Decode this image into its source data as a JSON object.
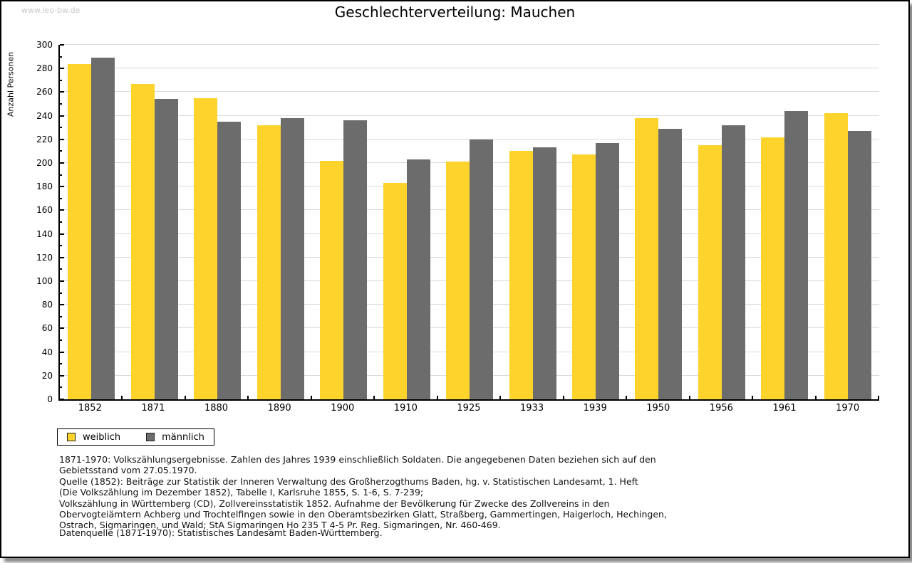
{
  "watermark": "www.leo-bw.de",
  "title": "Geschlechterverteilung: Mauchen",
  "y_axis_label": "Anzahl Personen",
  "footnote_lines": [
    "1871-1970: Volkszählungsergebnisse. Zahlen des Jahres 1939 einschließlich Soldaten. Die angegebenen Daten beziehen sich auf den",
    "Gebietsstand vom 27.05.1970.",
    "Quelle (1852): Beiträge zur Statistik der Inneren Verwaltung des Großherzogthums Baden, hg. v. Statistischen Landesamt, 1. Heft",
    "(Die Volkszählung im Dezember 1852), Tabelle I, Karlsruhe 1855, S. 1-6, S. 7-239;",
    "Volkszählung in Württemberg (CD), Zollvereinsstatistik 1852. Aufnahme der Bevölkerung für Zwecke des Zollvereins in den",
    "Obervogteiämtern Achberg und Trochtelfingen sowie in den Oberamtsbezirken Glatt, Straßberg, Gammertingen, Haigerloch, Hechingen,",
    "Ostrach, Sigmaringen, und Wald; StA Sigmaringen Ho 235 T 4-5 Pr. Reg. Sigmaringen, Nr. 460-469."
  ],
  "datasource_line": "Datenquelle (1871-1970): Statistisches Landesamt Baden-Württemberg.",
  "colors": {
    "weiblich": "#fdd32c",
    "männlich": "#6c6c6c",
    "gridline": "#d9d9d9",
    "watermark": "#c9c9c9"
  },
  "chart_data": {
    "type": "bar",
    "title": "Geschlechterverteilung: Mauchen",
    "xlabel": "",
    "ylabel": "Anzahl Personen",
    "ylim": [
      0,
      300
    ],
    "ytick_step": 20,
    "ytick_minor": 10,
    "grid": true,
    "legend_position": "bottom-left",
    "categories": [
      "1852",
      "1871",
      "1880",
      "1890",
      "1900",
      "1910",
      "1925",
      "1933",
      "1939",
      "1950",
      "1956",
      "1961",
      "1970"
    ],
    "series": [
      {
        "name": "weiblich",
        "color": "#fdd32c",
        "values": [
          284,
          267,
          255,
          232,
          202,
          183,
          201,
          210,
          207,
          238,
          215,
          222,
          242
        ]
      },
      {
        "name": "männlich",
        "color": "#6c6c6c",
        "values": [
          289,
          254,
          235,
          238,
          236,
          203,
          220,
          213,
          217,
          229,
          232,
          244,
          227
        ]
      }
    ]
  }
}
